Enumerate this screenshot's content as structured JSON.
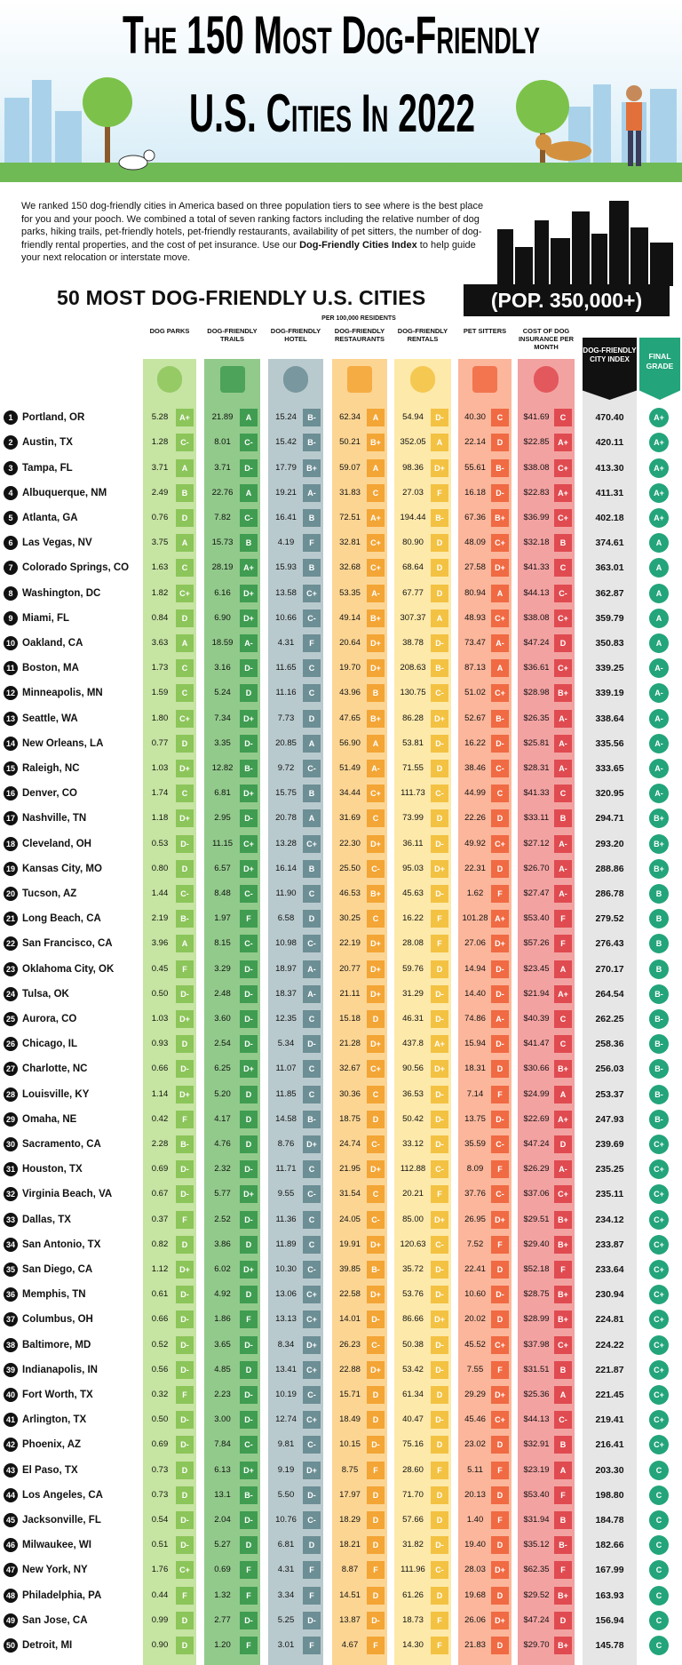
{
  "header": {
    "title_line1": "The 150 Most Dog-Friendly",
    "title_line2": "U.S. Cities In 2022"
  },
  "intro": {
    "text_before": "We ranked 150 dog-friendly cities in America based on three population tiers to see where is the best place for you and your pooch. We combined a total of seven ranking factors including the relative number of dog parks, hiking trails, pet-friendly hotels, pet-friendly restaurants, availability of pet sitters, the number of dog-friendly rental properties, and the cost of pet insurance. Use our",
    "bold": "Dog-Friendly Cities Index",
    "text_after": "to help guide your next relocation or interstate move."
  },
  "section": {
    "title": "50 MOST DOG-FRIENDLY U.S. CITIES",
    "badge": "(POP. 350,000+)",
    "note": "PER 100,000 RESIDENTS"
  },
  "table": {
    "columns": [
      "DOG PARKS",
      "DOG-FRIENDLY TRAILS",
      "DOG-FRIENDLY HOTEL",
      "DOG-FRIENDLY RESTAURANTS",
      "DOG-FRIENDLY RENTALS",
      "PET SITTERS",
      "COST OF DOG INSURANCE PER MONTH",
      "DOG-FRIENDLY CITY INDEX",
      "FINAL GRADE"
    ],
    "rows": [
      [
        "1",
        "Portland, OR",
        "5.28",
        "A+",
        "21.89",
        "A",
        "15.24",
        "B-",
        "62.34",
        "A",
        "54.94",
        "D-",
        "40.30",
        "C",
        "$41.69",
        "C",
        "470.40",
        "A+"
      ],
      [
        "2",
        "Austin, TX",
        "1.28",
        "C-",
        "8.01",
        "C-",
        "15.42",
        "B-",
        "50.21",
        "B+",
        "352.05",
        "A",
        "22.14",
        "D",
        "$22.85",
        "A+",
        "420.11",
        "A+"
      ],
      [
        "3",
        "Tampa, FL",
        "3.71",
        "A",
        "3.71",
        "D-",
        "17.79",
        "B+",
        "59.07",
        "A",
        "98.36",
        "D+",
        "55.61",
        "B-",
        "$38.08",
        "C+",
        "413.30",
        "A+"
      ],
      [
        "4",
        "Albuquerque, NM",
        "2.49",
        "B",
        "22.76",
        "A",
        "19.21",
        "A-",
        "31.83",
        "C",
        "27.03",
        "F",
        "16.18",
        "D-",
        "$22.83",
        "A+",
        "411.31",
        "A+"
      ],
      [
        "5",
        "Atlanta, GA",
        "0.76",
        "D",
        "7.82",
        "C-",
        "16.41",
        "B",
        "72.51",
        "A+",
        "194.44",
        "B-",
        "67.36",
        "B+",
        "$36.99",
        "C+",
        "402.18",
        "A+"
      ],
      [
        "6",
        "Las Vegas, NV",
        "3.75",
        "A",
        "15.73",
        "B",
        "4.19",
        "F",
        "32.81",
        "C+",
        "80.90",
        "D",
        "48.09",
        "C+",
        "$32.18",
        "B",
        "374.61",
        "A"
      ],
      [
        "7",
        "Colorado Springs, CO",
        "1.63",
        "C",
        "28.19",
        "A+",
        "15.93",
        "B",
        "32.68",
        "C+",
        "68.64",
        "D",
        "27.58",
        "D+",
        "$41.33",
        "C",
        "363.01",
        "A"
      ],
      [
        "8",
        "Washington, DC",
        "1.82",
        "C+",
        "6.16",
        "D+",
        "13.58",
        "C+",
        "53.35",
        "A-",
        "67.77",
        "D",
        "80.94",
        "A",
        "$44.13",
        "C-",
        "362.87",
        "A"
      ],
      [
        "9",
        "Miami, FL",
        "0.84",
        "D",
        "6.90",
        "D+",
        "10.66",
        "C-",
        "49.14",
        "B+",
        "307.37",
        "A",
        "48.93",
        "C+",
        "$38.08",
        "C+",
        "359.79",
        "A"
      ],
      [
        "10",
        "Oakland, CA",
        "3.63",
        "A",
        "18.59",
        "A-",
        "4.31",
        "F",
        "20.64",
        "D+",
        "38.78",
        "D-",
        "73.47",
        "A-",
        "$47.24",
        "D",
        "350.83",
        "A"
      ],
      [
        "11",
        "Boston, MA",
        "1.73",
        "C",
        "3.16",
        "D-",
        "11.65",
        "C",
        "19.70",
        "D+",
        "208.63",
        "B-",
        "87.13",
        "A",
        "$36.61",
        "C+",
        "339.25",
        "A-"
      ],
      [
        "12",
        "Minneapolis, MN",
        "1.59",
        "C",
        "5.24",
        "D",
        "11.16",
        "C",
        "43.96",
        "B",
        "130.75",
        "C-",
        "51.02",
        "C+",
        "$28.98",
        "B+",
        "339.19",
        "A-"
      ],
      [
        "13",
        "Seattle, WA",
        "1.80",
        "C+",
        "7.34",
        "D+",
        "7.73",
        "D",
        "47.65",
        "B+",
        "86.28",
        "D+",
        "52.67",
        "B-",
        "$26.35",
        "A-",
        "338.64",
        "A-"
      ],
      [
        "14",
        "New Orleans, LA",
        "0.77",
        "D",
        "3.35",
        "D-",
        "20.85",
        "A",
        "56.90",
        "A",
        "53.81",
        "D-",
        "16.22",
        "D-",
        "$25.81",
        "A-",
        "335.56",
        "A-"
      ],
      [
        "15",
        "Raleigh, NC",
        "1.03",
        "D+",
        "12.82",
        "B-",
        "9.72",
        "C-",
        "51.49",
        "A-",
        "71.55",
        "D",
        "38.46",
        "C-",
        "$28.31",
        "A-",
        "333.65",
        "A-"
      ],
      [
        "16",
        "Denver, CO",
        "1.74",
        "C",
        "6.81",
        "D+",
        "15.75",
        "B",
        "34.44",
        "C+",
        "111.73",
        "C-",
        "44.99",
        "C",
        "$41.33",
        "C",
        "320.95",
        "A-"
      ],
      [
        "17",
        "Nashville, TN",
        "1.18",
        "D+",
        "2.95",
        "D-",
        "20.78",
        "A",
        "31.69",
        "C",
        "73.99",
        "D",
        "22.26",
        "D",
        "$33.11",
        "B",
        "294.71",
        "B+"
      ],
      [
        "18",
        "Cleveland, OH",
        "0.53",
        "D-",
        "11.15",
        "C+",
        "13.28",
        "C+",
        "22.30",
        "D+",
        "36.11",
        "D-",
        "49.92",
        "C+",
        "$27.12",
        "A-",
        "293.20",
        "B+"
      ],
      [
        "19",
        "Kansas City, MO",
        "0.80",
        "D",
        "6.57",
        "D+",
        "16.14",
        "B",
        "25.50",
        "C-",
        "95.03",
        "D+",
        "22.31",
        "D",
        "$26.70",
        "A-",
        "288.86",
        "B+"
      ],
      [
        "20",
        "Tucson, AZ",
        "1.44",
        "C-",
        "8.48",
        "C-",
        "11.90",
        "C",
        "46.53",
        "B+",
        "45.63",
        "D-",
        "1.62",
        "F",
        "$27.47",
        "A-",
        "286.78",
        "B"
      ],
      [
        "21",
        "Long Beach, CA",
        "2.19",
        "B-",
        "1.97",
        "F",
        "6.58",
        "D",
        "30.25",
        "C",
        "16.22",
        "F",
        "101.28",
        "A+",
        "$53.40",
        "F",
        "279.52",
        "B"
      ],
      [
        "22",
        "San Francisco, CA",
        "3.96",
        "A",
        "8.15",
        "C-",
        "10.98",
        "C-",
        "22.19",
        "D+",
        "28.08",
        "F",
        "27.06",
        "D+",
        "$57.26",
        "F",
        "276.43",
        "B"
      ],
      [
        "23",
        "Oklahoma City, OK",
        "0.45",
        "F",
        "3.29",
        "D-",
        "18.97",
        "A-",
        "20.77",
        "D+",
        "59.76",
        "D",
        "14.94",
        "D-",
        "$23.45",
        "A",
        "270.17",
        "B"
      ],
      [
        "24",
        "Tulsa, OK",
        "0.50",
        "D-",
        "2.48",
        "D-",
        "18.37",
        "A-",
        "21.11",
        "D+",
        "31.29",
        "D-",
        "14.40",
        "D-",
        "$21.94",
        "A+",
        "264.54",
        "B-"
      ],
      [
        "25",
        "Aurora, CO",
        "1.03",
        "D+",
        "3.60",
        "D-",
        "12.35",
        "C",
        "15.18",
        "D",
        "46.31",
        "D-",
        "74.86",
        "A-",
        "$40.39",
        "C",
        "262.25",
        "B-"
      ],
      [
        "26",
        "Chicago, IL",
        "0.93",
        "D",
        "2.54",
        "D-",
        "5.34",
        "D-",
        "21.28",
        "D+",
        "437.8",
        "A+",
        "15.94",
        "D-",
        "$41.47",
        "C",
        "258.36",
        "B-"
      ],
      [
        "27",
        "Charlotte, NC",
        "0.66",
        "D-",
        "6.25",
        "D+",
        "11.07",
        "C",
        "32.67",
        "C+",
        "90.56",
        "D+",
        "18.31",
        "D",
        "$30.66",
        "B+",
        "256.03",
        "B-"
      ],
      [
        "28",
        "Louisville, KY",
        "1.14",
        "D+",
        "5.20",
        "D",
        "11.85",
        "C",
        "30.36",
        "C",
        "36.53",
        "D-",
        "7.14",
        "F",
        "$24.99",
        "A",
        "253.37",
        "B-"
      ],
      [
        "29",
        "Omaha, NE",
        "0.42",
        "F",
        "4.17",
        "D",
        "14.58",
        "B-",
        "18.75",
        "D",
        "50.42",
        "D-",
        "13.75",
        "D-",
        "$22.69",
        "A+",
        "247.93",
        "B-"
      ],
      [
        "30",
        "Sacramento, CA",
        "2.28",
        "B-",
        "4.76",
        "D",
        "8.76",
        "D+",
        "24.74",
        "C-",
        "33.12",
        "D-",
        "35.59",
        "C-",
        "$47.24",
        "D",
        "239.69",
        "C+"
      ],
      [
        "31",
        "Houston, TX",
        "0.69",
        "D-",
        "2.32",
        "D-",
        "11.71",
        "C",
        "21.95",
        "D+",
        "112.88",
        "C-",
        "8.09",
        "F",
        "$26.29",
        "A-",
        "235.25",
        "C+"
      ],
      [
        "32",
        "Virginia Beach, VA",
        "0.67",
        "D-",
        "5.77",
        "D+",
        "9.55",
        "C-",
        "31.54",
        "C",
        "20.21",
        "F",
        "37.76",
        "C-",
        "$37.06",
        "C+",
        "235.11",
        "C+"
      ],
      [
        "33",
        "Dallas, TX",
        "0.37",
        "F",
        "2.52",
        "D-",
        "11.36",
        "C",
        "24.05",
        "C-",
        "85.00",
        "D+",
        "26.95",
        "D+",
        "$29.51",
        "B+",
        "234.12",
        "C+"
      ],
      [
        "34",
        "San Antonio, TX",
        "0.82",
        "D",
        "3.86",
        "D",
        "11.89",
        "C",
        "19.91",
        "D+",
        "120.63",
        "C-",
        "7.52",
        "F",
        "$29.40",
        "B+",
        "233.87",
        "C+"
      ],
      [
        "35",
        "San Diego, CA",
        "1.12",
        "D+",
        "6.02",
        "D+",
        "10.30",
        "C-",
        "39.85",
        "B-",
        "35.72",
        "D-",
        "22.41",
        "D",
        "$52.18",
        "F",
        "233.64",
        "C+"
      ],
      [
        "36",
        "Memphis, TN",
        "0.61",
        "D-",
        "4.92",
        "D",
        "13.06",
        "C+",
        "22.58",
        "D+",
        "53.76",
        "D-",
        "10.60",
        "D-",
        "$28.75",
        "B+",
        "230.94",
        "C+"
      ],
      [
        "37",
        "Columbus, OH",
        "0.66",
        "D-",
        "1.86",
        "F",
        "13.13",
        "C+",
        "14.01",
        "D-",
        "86.66",
        "D+",
        "20.02",
        "D",
        "$28.99",
        "B+",
        "224.81",
        "C+"
      ],
      [
        "38",
        "Baltimore, MD",
        "0.52",
        "D-",
        "3.65",
        "D-",
        "8.34",
        "D+",
        "26.23",
        "C-",
        "50.38",
        "D-",
        "45.52",
        "C+",
        "$37.98",
        "C+",
        "224.22",
        "C+"
      ],
      [
        "39",
        "Indianapolis, IN",
        "0.56",
        "D-",
        "4.85",
        "D",
        "13.41",
        "C+",
        "22.88",
        "D+",
        "53.42",
        "D-",
        "7.55",
        "F",
        "$31.51",
        "B",
        "221.87",
        "C+"
      ],
      [
        "40",
        "Fort Worth, TX",
        "0.32",
        "F",
        "2.23",
        "D-",
        "10.19",
        "C-",
        "15.71",
        "D",
        "61.34",
        "D",
        "29.29",
        "D+",
        "$25.36",
        "A",
        "221.45",
        "C+"
      ],
      [
        "41",
        "Arlington, TX",
        "0.50",
        "D-",
        "3.00",
        "D-",
        "12.74",
        "C+",
        "18.49",
        "D",
        "40.47",
        "D-",
        "45.46",
        "C+",
        "$44.13",
        "C-",
        "219.41",
        "C+"
      ],
      [
        "42",
        "Phoenix, AZ",
        "0.69",
        "D-",
        "7.84",
        "C-",
        "9.81",
        "C-",
        "10.15",
        "D-",
        "75.16",
        "D",
        "23.02",
        "D",
        "$32.91",
        "B",
        "216.41",
        "C+"
      ],
      [
        "43",
        "El Paso, TX",
        "0.73",
        "D",
        "6.13",
        "D+",
        "9.19",
        "D+",
        "8.75",
        "F",
        "28.60",
        "F",
        "5.11",
        "F",
        "$23.19",
        "A",
        "203.30",
        "C"
      ],
      [
        "44",
        "Los Angeles, CA",
        "0.73",
        "D",
        "13.1",
        "B-",
        "5.50",
        "D-",
        "17.97",
        "D",
        "71.70",
        "D",
        "20.13",
        "D",
        "$53.40",
        "F",
        "198.80",
        "C"
      ],
      [
        "45",
        "Jacksonville, FL",
        "0.54",
        "D-",
        "2.04",
        "D-",
        "10.76",
        "C-",
        "18.29",
        "D",
        "57.66",
        "D",
        "1.40",
        "F",
        "$31.94",
        "B",
        "184.78",
        "C"
      ],
      [
        "46",
        "Milwaukee, WI",
        "0.51",
        "D-",
        "5.27",
        "D",
        "6.81",
        "D",
        "18.21",
        "D",
        "31.82",
        "D-",
        "19.40",
        "D",
        "$35.12",
        "B-",
        "182.66",
        "C"
      ],
      [
        "47",
        "New York, NY",
        "1.76",
        "C+",
        "0.69",
        "F",
        "4.31",
        "F",
        "8.87",
        "F",
        "111.96",
        "C-",
        "28.03",
        "D+",
        "$62.35",
        "F",
        "167.99",
        "C"
      ],
      [
        "48",
        "Philadelphia, PA",
        "0.44",
        "F",
        "1.32",
        "F",
        "3.34",
        "F",
        "14.51",
        "D",
        "61.26",
        "D",
        "19.68",
        "D",
        "$29.52",
        "B+",
        "163.93",
        "C"
      ],
      [
        "49",
        "San Jose, CA",
        "0.99",
        "D",
        "2.77",
        "D-",
        "5.25",
        "D-",
        "13.87",
        "D-",
        "18.73",
        "F",
        "26.06",
        "D+",
        "$47.24",
        "D",
        "156.94",
        "C"
      ],
      [
        "50",
        "Detroit, MI",
        "0.90",
        "D",
        "1.20",
        "F",
        "3.01",
        "F",
        "4.67",
        "F",
        "14.30",
        "F",
        "21.83",
        "D",
        "$29.70",
        "B+",
        "145.78",
        "C"
      ]
    ]
  }
}
